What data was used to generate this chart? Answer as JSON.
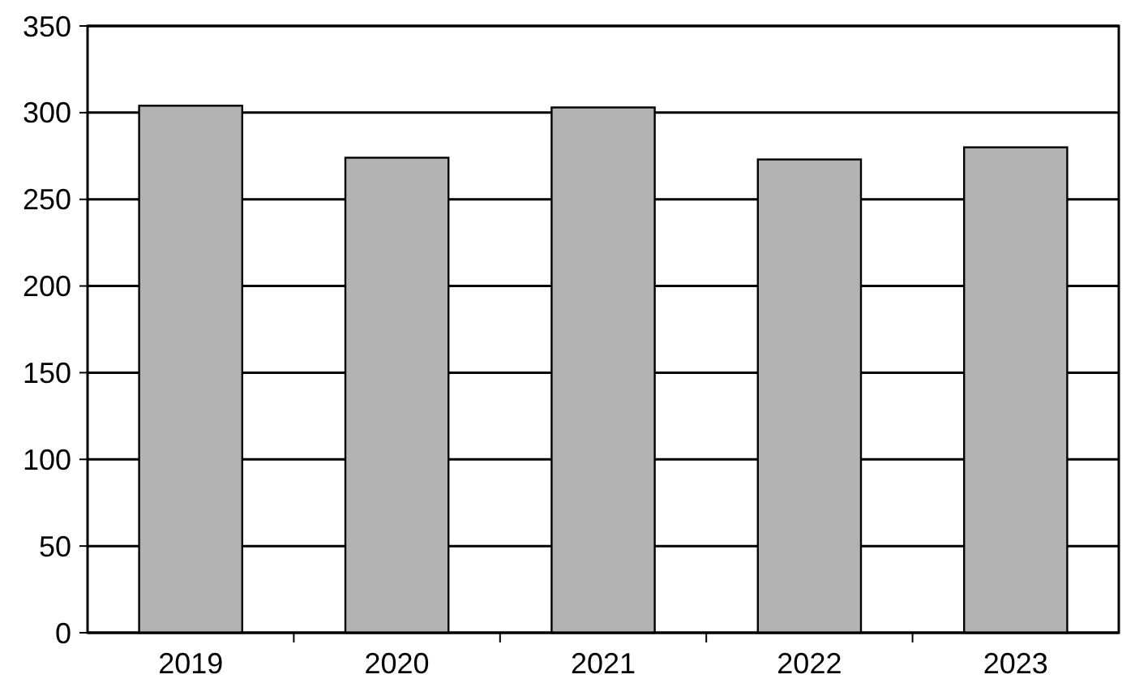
{
  "chart_data": {
    "type": "bar",
    "categories": [
      "2019",
      "2020",
      "2021",
      "2022",
      "2023"
    ],
    "values": [
      304,
      274,
      303,
      273,
      280
    ],
    "color": "#b3b3b3",
    "ylim": [
      0,
      350
    ],
    "yticks": [
      0,
      50,
      100,
      150,
      200,
      250,
      300,
      350
    ],
    "grid": "y"
  }
}
